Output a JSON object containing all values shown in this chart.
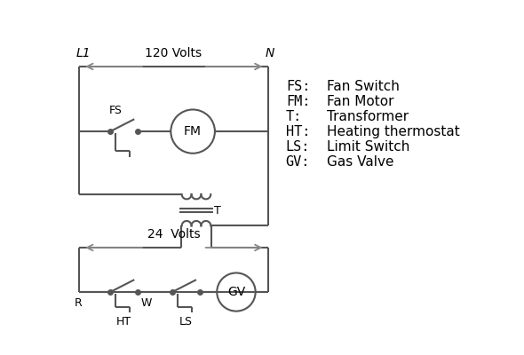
{
  "bg_color": "#ffffff",
  "line_color": "#555555",
  "arrow_color": "#888888",
  "text_color": "#000000",
  "legend": {
    "FS": "Fan Switch",
    "FM": "Fan Motor",
    "T": "Transformer",
    "HT": "Heating thermostat",
    "LS": "Limit Switch",
    "GV": "Gas Valve"
  }
}
